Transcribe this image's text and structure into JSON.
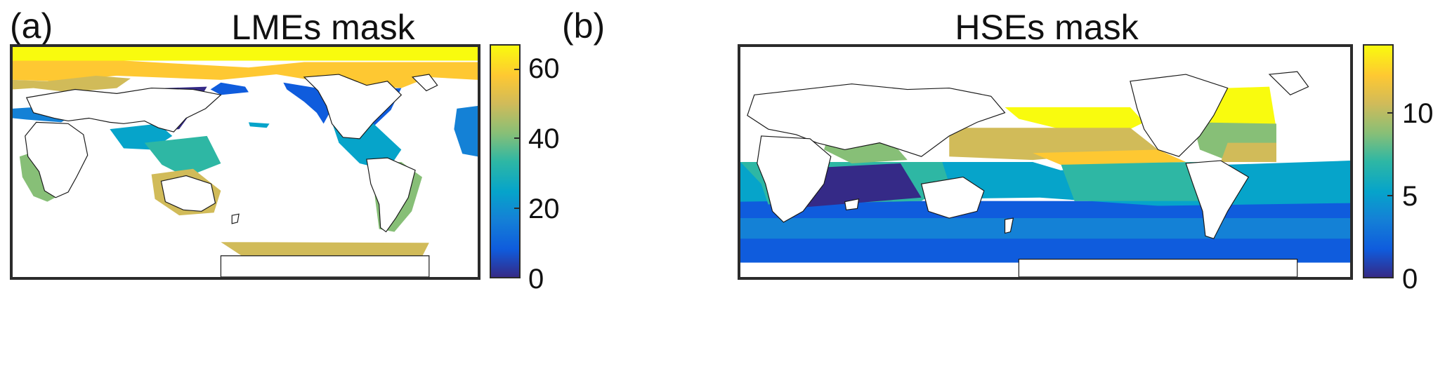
{
  "panels": [
    {
      "letter": "(a)",
      "title": "LMEs mask",
      "colorbar_ticks": [
        "60",
        "40",
        "20",
        "0"
      ],
      "colorbar_range": [
        0,
        66
      ]
    },
    {
      "letter": "(b)",
      "title": "HSEs mask",
      "colorbar_ticks": [
        "10",
        "5",
        "0"
      ],
      "colorbar_range": [
        0,
        14
      ]
    }
  ],
  "colormap": [
    "#352a87",
    "#0f5cdd",
    "#1481d6",
    "#06a4ca",
    "#2eb7a4",
    "#87bf77",
    "#d1bb59",
    "#fec832",
    "#f9fb0e"
  ],
  "colors": {
    "frame": "#2b2b2b",
    "land_fill": "#ffffff",
    "coast": "#1a1a1a"
  }
}
